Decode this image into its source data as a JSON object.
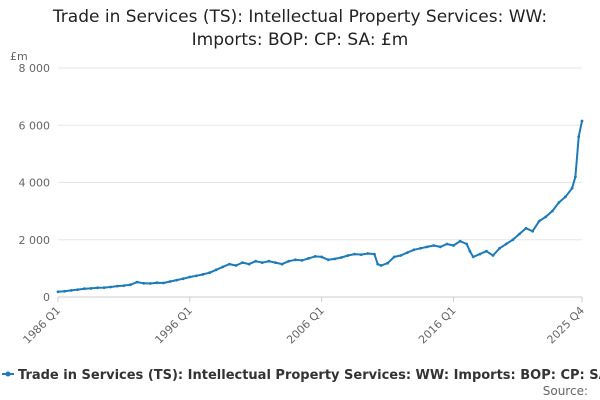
{
  "chart_data": {
    "type": "line",
    "title_line1": "Trade in Services (TS): Intellectual Property Services: WW:",
    "title_line2": "Imports: BOP: CP: SA: £m",
    "ylabel": "£m",
    "ylim": [
      0,
      8000
    ],
    "yticks": [
      0,
      2000,
      4000,
      6000,
      8000
    ],
    "ytick_labels": [
      "0",
      "2 000",
      "4 000",
      "6 000",
      "8 000"
    ],
    "xlim": [
      1986.0,
      2025.75
    ],
    "xticks": [
      1986.0,
      1996.0,
      2006.0,
      2016.0,
      2025.75
    ],
    "xtick_labels": [
      "1986 Q1",
      "1996 Q1",
      "2006 Q1",
      "2016 Q1",
      "2025 Q4"
    ],
    "grid": true,
    "legend_position": "bottom",
    "color": "#1f7ab8",
    "series": [
      {
        "name": "Trade in Services (TS): Intellectual Property Services: WW: Imports: BOP: CP: SA: £m",
        "points": [
          [
            1986.0,
            180
          ],
          [
            1986.5,
            200
          ],
          [
            1987.0,
            230
          ],
          [
            1987.5,
            260
          ],
          [
            1988.0,
            290
          ],
          [
            1988.5,
            300
          ],
          [
            1989.0,
            320
          ],
          [
            1989.5,
            330
          ],
          [
            1990.0,
            350
          ],
          [
            1990.5,
            380
          ],
          [
            1991.0,
            400
          ],
          [
            1991.5,
            430
          ],
          [
            1992.0,
            520
          ],
          [
            1992.5,
            480
          ],
          [
            1993.0,
            470
          ],
          [
            1993.5,
            500
          ],
          [
            1994.0,
            490
          ],
          [
            1994.5,
            540
          ],
          [
            1995.0,
            590
          ],
          [
            1995.5,
            640
          ],
          [
            1996.0,
            700
          ],
          [
            1996.5,
            740
          ],
          [
            1997.0,
            790
          ],
          [
            1997.5,
            850
          ],
          [
            1998.0,
            950
          ],
          [
            1998.5,
            1050
          ],
          [
            1999.0,
            1150
          ],
          [
            1999.5,
            1100
          ],
          [
            2000.0,
            1200
          ],
          [
            2000.5,
            1150
          ],
          [
            2001.0,
            1250
          ],
          [
            2001.5,
            1200
          ],
          [
            2002.0,
            1250
          ],
          [
            2002.5,
            1200
          ],
          [
            2003.0,
            1150
          ],
          [
            2003.5,
            1250
          ],
          [
            2004.0,
            1300
          ],
          [
            2004.5,
            1280
          ],
          [
            2005.0,
            1350
          ],
          [
            2005.5,
            1420
          ],
          [
            2006.0,
            1400
          ],
          [
            2006.5,
            1300
          ],
          [
            2007.0,
            1330
          ],
          [
            2007.5,
            1380
          ],
          [
            2008.0,
            1450
          ],
          [
            2008.5,
            1500
          ],
          [
            2009.0,
            1480
          ],
          [
            2009.5,
            1520
          ],
          [
            2010.0,
            1500
          ],
          [
            2010.25,
            1150
          ],
          [
            2010.5,
            1100
          ],
          [
            2011.0,
            1180
          ],
          [
            2011.5,
            1400
          ],
          [
            2012.0,
            1450
          ],
          [
            2012.5,
            1550
          ],
          [
            2013.0,
            1650
          ],
          [
            2013.5,
            1700
          ],
          [
            2014.0,
            1750
          ],
          [
            2014.5,
            1800
          ],
          [
            2015.0,
            1750
          ],
          [
            2015.5,
            1850
          ],
          [
            2016.0,
            1800
          ],
          [
            2016.5,
            1950
          ],
          [
            2017.0,
            1850
          ],
          [
            2017.25,
            1600
          ],
          [
            2017.5,
            1400
          ],
          [
            2018.0,
            1500
          ],
          [
            2018.5,
            1600
          ],
          [
            2019.0,
            1450
          ],
          [
            2019.5,
            1700
          ],
          [
            2020.0,
            1850
          ],
          [
            2020.5,
            2000
          ],
          [
            2021.0,
            2200
          ],
          [
            2021.5,
            2400
          ],
          [
            2022.0,
            2300
          ],
          [
            2022.5,
            2650
          ],
          [
            2023.0,
            2800
          ],
          [
            2023.5,
            3000
          ],
          [
            2024.0,
            3300
          ],
          [
            2024.5,
            3500
          ],
          [
            2025.0,
            3800
          ],
          [
            2025.25,
            4200
          ],
          [
            2025.5,
            5600
          ],
          [
            2025.75,
            6150
          ]
        ]
      }
    ],
    "source_label": "Source:"
  }
}
